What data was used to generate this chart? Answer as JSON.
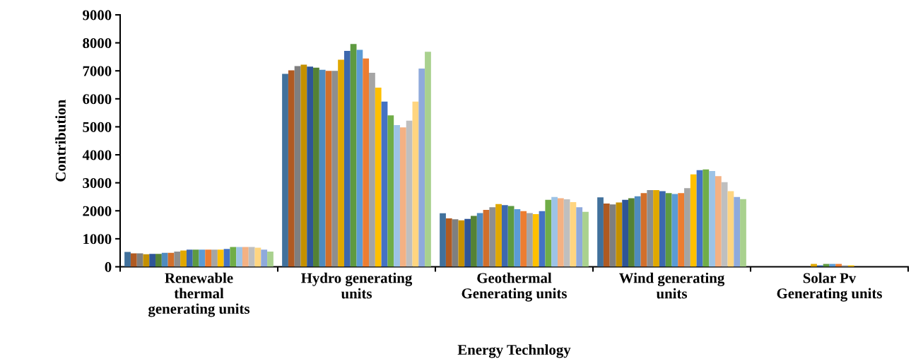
{
  "chart_data": {
    "type": "bar",
    "xlabel": "Energy Technlogy",
    "ylabel": "Contribution",
    "categories": [
      "Renewable thermal generating units",
      "Hydro generating units",
      "Geothermal Generating units",
      "Wind generating units",
      "Solar Pv Generating units"
    ],
    "ylim": [
      0,
      9000
    ],
    "yticks": [
      0,
      1000,
      2000,
      3000,
      4000,
      5000,
      6000,
      7000,
      8000,
      9000
    ],
    "grid": false,
    "legend": false,
    "series": [
      {
        "color": "#41719c",
        "values": [
          530,
          6890,
          1910,
          2480,
          0
        ]
      },
      {
        "color": "#b05a22",
        "values": [
          480,
          7020,
          1730,
          2260,
          0
        ]
      },
      {
        "color": "#7f7f7f",
        "values": [
          480,
          7170,
          1700,
          2230,
          0
        ]
      },
      {
        "color": "#c49000",
        "values": [
          450,
          7220,
          1660,
          2300,
          0
        ]
      },
      {
        "color": "#2f5597",
        "values": [
          460,
          7150,
          1710,
          2390,
          0
        ]
      },
      {
        "color": "#548235",
        "values": [
          460,
          7110,
          1820,
          2450,
          0
        ]
      },
      {
        "color": "#4f8bbf",
        "values": [
          500,
          7040,
          1920,
          2520,
          0
        ]
      },
      {
        "color": "#d26f2b",
        "values": [
          500,
          7000,
          2030,
          2630,
          0
        ]
      },
      {
        "color": "#8e8e8e",
        "values": [
          540,
          7000,
          2130,
          2740,
          null
        ]
      },
      {
        "color": "#e0a800",
        "values": [
          580,
          7400,
          2240,
          2740,
          100
        ]
      },
      {
        "color": "#3d68ae",
        "values": [
          610,
          7710,
          2200,
          2700,
          50
        ]
      },
      {
        "color": "#5e9a40",
        "values": [
          610,
          7960,
          2170,
          2630,
          100
        ]
      },
      {
        "color": "#5b9bd5",
        "values": [
          610,
          7750,
          2060,
          2600,
          100
        ]
      },
      {
        "color": "#ed7d31",
        "values": [
          610,
          7440,
          1990,
          2630,
          100
        ]
      },
      {
        "color": "#a5a5a5",
        "values": [
          610,
          6930,
          1920,
          2810,
          50
        ]
      },
      {
        "color": "#ffc000",
        "values": [
          610,
          6400,
          1880,
          3300,
          50
        ]
      },
      {
        "color": "#4472c4",
        "values": [
          640,
          5900,
          1990,
          3450,
          0
        ]
      },
      {
        "color": "#70ad47",
        "values": [
          710,
          5410,
          2390,
          3480,
          0
        ]
      },
      {
        "color": "#9dc3e6",
        "values": [
          710,
          5060,
          2490,
          3420,
          0
        ]
      },
      {
        "color": "#f4b183",
        "values": [
          710,
          4980,
          2450,
          3240,
          0
        ]
      },
      {
        "color": "#bfbfbf",
        "values": [
          710,
          5220,
          2410,
          3020,
          0
        ]
      },
      {
        "color": "#ffd580",
        "values": [
          680,
          5900,
          2310,
          2700,
          0
        ]
      },
      {
        "color": "#8faadc",
        "values": [
          610,
          7080,
          2130,
          2490,
          0
        ]
      },
      {
        "color": "#a9d18e",
        "values": [
          540,
          7680,
          1960,
          2420,
          0
        ]
      }
    ]
  }
}
